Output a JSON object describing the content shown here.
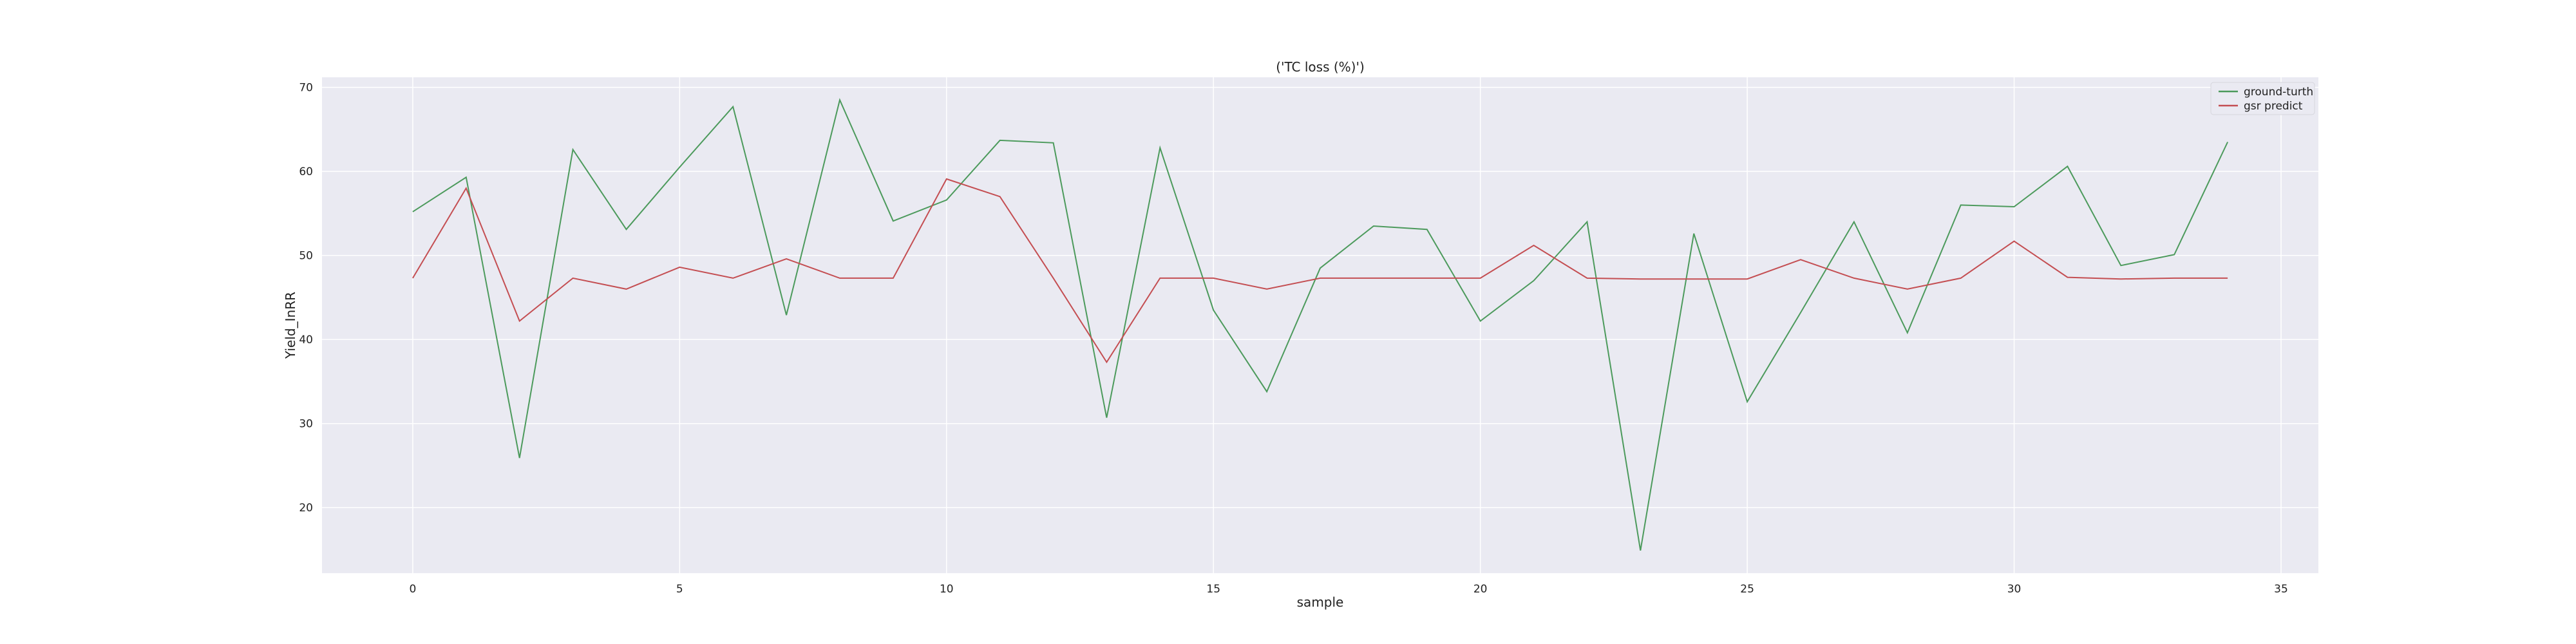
{
  "chart_data": {
    "type": "line",
    "title": "('TC loss (%)')",
    "xlabel": "sample",
    "ylabel": "Yield_InRR",
    "xlim": [
      -1.7,
      35.7
    ],
    "ylim": [
      12.2,
      71.2
    ],
    "xticks": [
      0,
      5,
      10,
      15,
      20,
      25,
      30,
      35
    ],
    "yticks": [
      20,
      30,
      40,
      50,
      60,
      70
    ],
    "grid": true,
    "legend": "top-right",
    "x": [
      0,
      1,
      2,
      3,
      4,
      5,
      6,
      7,
      8,
      9,
      10,
      11,
      12,
      13,
      14,
      15,
      16,
      17,
      18,
      19,
      20,
      21,
      22,
      23,
      24,
      25,
      26,
      27,
      28,
      29,
      30,
      31,
      32,
      33,
      34
    ],
    "series": [
      {
        "name": "ground-turth",
        "color": "#4c9a5c",
        "values": [
          55.2,
          59.3,
          25.9,
          62.6,
          53.1,
          60.5,
          67.7,
          42.9,
          68.5,
          54.1,
          56.6,
          63.7,
          63.4,
          30.7,
          62.8,
          43.5,
          33.8,
          48.5,
          53.5,
          53.1,
          42.2,
          47.0,
          54.0,
          14.9,
          52.6,
          32.6,
          43.2,
          54.0,
          40.8,
          56.0,
          55.8,
          60.6,
          48.8,
          50.1,
          63.5
        ]
      },
      {
        "name": "gsr predict",
        "color": "#c44e52",
        "values": [
          47.3,
          58.0,
          42.2,
          47.3,
          46.0,
          48.6,
          47.3,
          49.6,
          47.3,
          47.3,
          59.1,
          57.0,
          47.3,
          37.3,
          47.3,
          47.3,
          46.0,
          47.3,
          47.3,
          47.3,
          47.3,
          51.2,
          47.3,
          47.2,
          47.2,
          47.2,
          49.5,
          47.3,
          46.0,
          47.3,
          51.7,
          47.4,
          47.2,
          47.3,
          47.3
        ]
      }
    ]
  }
}
